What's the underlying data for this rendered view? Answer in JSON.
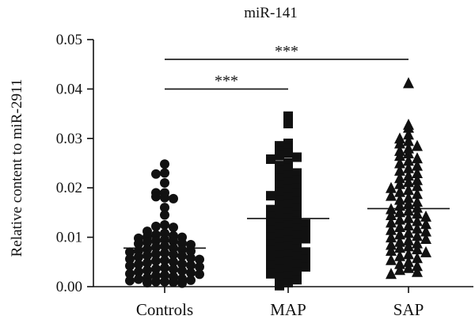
{
  "chart_data": {
    "type": "scatter",
    "title": "miR-141",
    "xlabel": "",
    "ylabel": "Relative content to miR-2911",
    "ylim": [
      0,
      0.05
    ],
    "yticks": [
      "0.00",
      "0.01",
      "0.02",
      "0.03",
      "0.04",
      "0.05"
    ],
    "grid": false,
    "categories": [
      "Controls",
      "MAP",
      "SAP"
    ],
    "means": [
      0.0078,
      0.0138,
      0.0158
    ],
    "markers": [
      "circle",
      "square",
      "triangle"
    ],
    "significance": [
      {
        "from": "Controls",
        "to": "MAP",
        "label": "***",
        "y": 0.04
      },
      {
        "from": "Controls",
        "to": "SAP",
        "label": "***",
        "y": 0.046
      }
    ],
    "series": [
      {
        "values": [
          0.0248,
          0.023,
          0.0228,
          0.021,
          0.019,
          0.019,
          0.018,
          0.0182,
          0.0178,
          0.016,
          0.0145,
          0.0125,
          0.0122,
          0.012,
          0.0112,
          0.0108,
          0.0105,
          0.0103,
          0.0101,
          0.01,
          0.0098,
          0.0095,
          0.0093,
          0.0092,
          0.009,
          0.0088,
          0.0087,
          0.0085,
          0.0082,
          0.008,
          0.0078,
          0.0076,
          0.0075,
          0.0073,
          0.0072,
          0.007,
          0.0068,
          0.0066,
          0.0065,
          0.0063,
          0.0062,
          0.006,
          0.0058,
          0.0056,
          0.0055,
          0.0053,
          0.0052,
          0.005,
          0.0048,
          0.0046,
          0.0045,
          0.0043,
          0.0042,
          0.004,
          0.0038,
          0.0036,
          0.0035,
          0.0033,
          0.0032,
          0.003,
          0.0028,
          0.0026,
          0.0025,
          0.0023,
          0.0022,
          0.002,
          0.0018,
          0.0016,
          0.0015,
          0.0013,
          0.0012,
          0.001,
          0.001,
          0.0009,
          0.0008,
          0.0007
        ]
      },
      {
        "values": [
          0.0345,
          0.033,
          0.029,
          0.0285,
          0.028,
          0.0275,
          0.027,
          0.0265,
          0.0262,
          0.0258,
          0.025,
          0.0245,
          0.024,
          0.0235,
          0.023,
          0.0225,
          0.022,
          0.0215,
          0.021,
          0.0205,
          0.02,
          0.0196,
          0.0192,
          0.0188,
          0.0184,
          0.018,
          0.0176,
          0.0172,
          0.0168,
          0.0164,
          0.016,
          0.0156,
          0.0152,
          0.0148,
          0.0145,
          0.0142,
          0.0139,
          0.0136,
          0.0133,
          0.013,
          0.0127,
          0.0124,
          0.0121,
          0.0118,
          0.0115,
          0.0112,
          0.0109,
          0.0106,
          0.0103,
          0.01,
          0.0097,
          0.0094,
          0.0091,
          0.0088,
          0.0085,
          0.0082,
          0.0079,
          0.0076,
          0.0073,
          0.007,
          0.0067,
          0.0064,
          0.0061,
          0.0058,
          0.0055,
          0.0052,
          0.0049,
          0.0046,
          0.0043,
          0.004,
          0.0037,
          0.0034,
          0.003,
          0.0026,
          0.0022,
          0.0018,
          0.0014,
          0.0008,
          0.0002
        ]
      },
      {
        "values": [
          0.0412,
          0.0328,
          0.0322,
          0.0308,
          0.03,
          0.0295,
          0.029,
          0.0285,
          0.028,
          0.0275,
          0.027,
          0.0265,
          0.026,
          0.0255,
          0.025,
          0.0245,
          0.024,
          0.0235,
          0.023,
          0.0225,
          0.022,
          0.0216,
          0.0212,
          0.0208,
          0.0204,
          0.02,
          0.0196,
          0.0192,
          0.0188,
          0.0184,
          0.018,
          0.0176,
          0.0172,
          0.0168,
          0.0164,
          0.016,
          0.0157,
          0.0154,
          0.0151,
          0.0148,
          0.0145,
          0.0142,
          0.0139,
          0.0136,
          0.0133,
          0.013,
          0.0127,
          0.0124,
          0.0121,
          0.0118,
          0.0115,
          0.0112,
          0.0109,
          0.0106,
          0.0103,
          0.01,
          0.0097,
          0.0094,
          0.0091,
          0.0088,
          0.0085,
          0.0082,
          0.0079,
          0.0076,
          0.0073,
          0.007,
          0.0066,
          0.0062,
          0.0058,
          0.0054,
          0.005,
          0.0046,
          0.0042,
          0.0038,
          0.0034,
          0.003,
          0.0026
        ]
      }
    ]
  }
}
